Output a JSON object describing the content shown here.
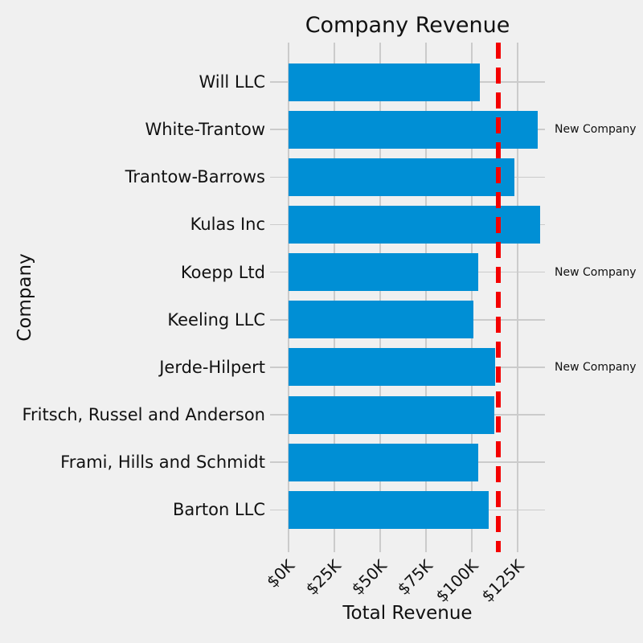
{
  "chart_data": {
    "type": "bar",
    "orientation": "horizontal",
    "title": "Company Revenue",
    "xlabel": "Total Revenue",
    "ylabel": "Company",
    "categories_top_to_bottom": [
      "Will LLC",
      "White-Trantow",
      "Trantow-Barrows",
      "Kulas Inc",
      "Koepp Ltd",
      "Keeling LLC",
      "Jerde-Hilpert",
      "Fritsch, Russel and Anderson",
      "Frami, Hills and Schmidt",
      "Barton LLC"
    ],
    "values_top_to_bottom": [
      104437.6,
      135841.99,
      123381.38,
      137351.96,
      103660.54,
      100934.3,
      112591.43,
      112214.71,
      103569.59,
      109438.5
    ],
    "xlim": [
      -10000,
      140000
    ],
    "xticks": [
      0,
      25000,
      50000,
      75000,
      100000,
      125000
    ],
    "xtick_labels": [
      "$0K",
      "$25K",
      "$50K",
      "$75K",
      "$100K",
      "$125K"
    ],
    "grid": true,
    "legend": "none",
    "reference_line": {
      "value": 114342.2,
      "style": "dashed",
      "meaning": "average revenue"
    },
    "annotations": [
      {
        "company": "White-Trantow",
        "label": "New Company"
      },
      {
        "company": "Koepp Ltd",
        "label": "New Company"
      },
      {
        "company": "Jerde-Hilpert",
        "label": "New Company"
      }
    ],
    "colors": {
      "bar": "#008fd5",
      "reference_line": "#f40000",
      "background": "#f0f0f0",
      "grid": "#cbcbcb",
      "text": "#111111"
    }
  }
}
